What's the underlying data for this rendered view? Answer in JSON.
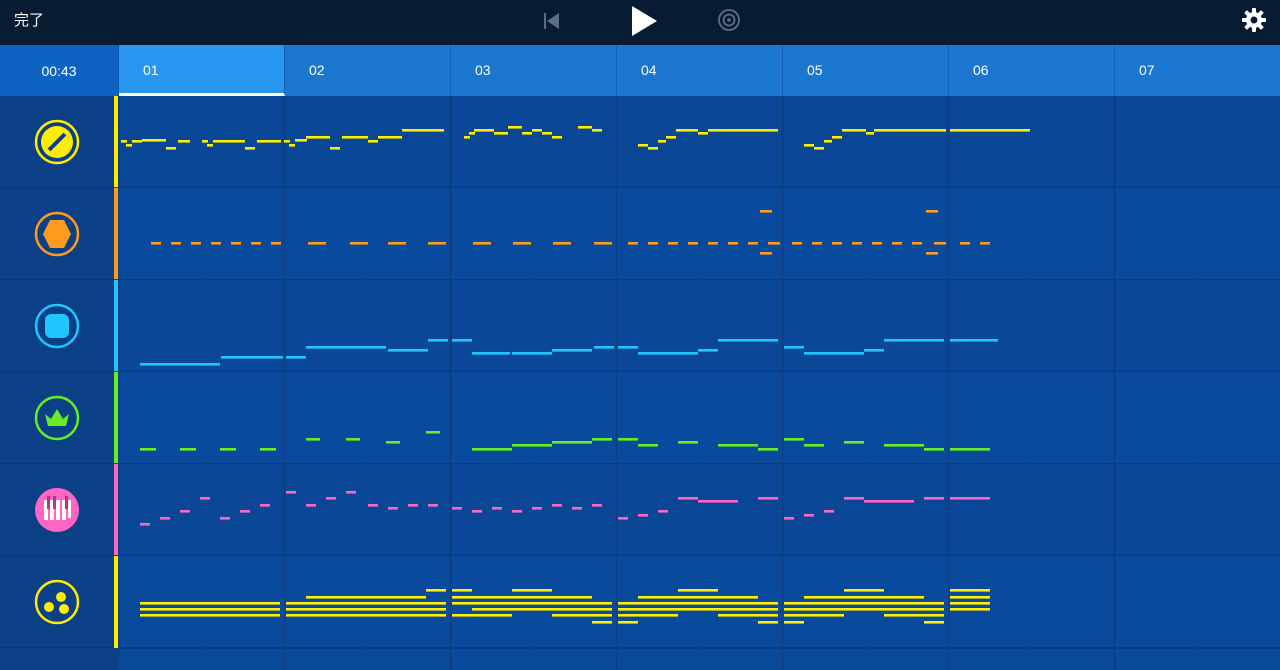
{
  "toolbar": {
    "done_label": "完了",
    "icons": [
      "rewind-icon",
      "play-icon",
      "loop-icon",
      "settings-gear-icon"
    ]
  },
  "timeline": {
    "time": "00:43",
    "measures": [
      "01",
      "02",
      "03",
      "04",
      "05",
      "06",
      "07"
    ],
    "active_measure": "01"
  },
  "tracks": [
    {
      "name": "track-1-lead",
      "icon": "slash-circle-icon",
      "color": "#ffee00",
      "icon_color": "#ffee00"
    },
    {
      "name": "track-2-harmony",
      "icon": "hexagon-icon",
      "color": "#ff9a1f",
      "icon_color": "#ff9a1f"
    },
    {
      "name": "track-3-bass",
      "icon": "rounded-square-icon",
      "color": "#1fc6ff",
      "icon_color": "#1fc6ff"
    },
    {
      "name": "track-4-crown",
      "icon": "crown-icon",
      "color": "#66ee22",
      "icon_color": "#66ee22"
    },
    {
      "name": "track-5-piano",
      "icon": "piano-keys-icon",
      "color": "#ff66c4",
      "icon_color": "#ff66c4"
    },
    {
      "name": "track-6-chords",
      "icon": "three-dots-circle-icon",
      "color": "#ffee00",
      "icon_color": "#ffee00"
    }
  ]
}
